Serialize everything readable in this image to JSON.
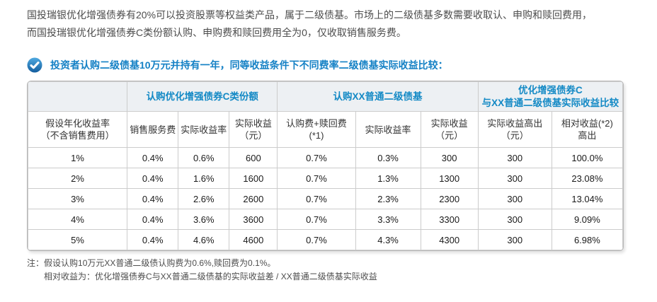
{
  "colors": {
    "accent_blue": "#1581c5",
    "table_header_text": "#1389c5",
    "table_header_bg": "#edf0f3",
    "table_border": "#cccccc",
    "body_text": "#4c4c4c"
  },
  "intro": {
    "line1": "国投瑞银优化增强债券有20%可以投资股票等权益类产品，属于二级债基。市场上的二级债基多数需要收取认、申购和赎回费用，",
    "line2": "而国投瑞银优化增强债券C类份额认购、申购费和赎回费用全为0，仅收取销售服务费。"
  },
  "heading": {
    "icon": "check-circle-icon",
    "text": "投资者认购二级债基10万元并持有一年，同等收益条件下不同费率二级债基实际收益比较："
  },
  "comparison_table": {
    "group_headers": [
      {
        "lines": [
          ""
        ],
        "colspan": 1
      },
      {
        "lines": [
          "认购优化增强债券C类份额"
        ],
        "colspan": 3
      },
      {
        "lines": [
          "认购XX普通二级债基"
        ],
        "colspan": 3
      },
      {
        "lines": [
          "优化增强债券C",
          "与XX普通二级债基实际收益比较"
        ],
        "colspan": 2
      }
    ],
    "column_headers": [
      {
        "lines": [
          "假设年化收益率",
          "（不含销售费用）"
        ]
      },
      {
        "lines": [
          "销售服务费"
        ]
      },
      {
        "lines": [
          "实际收益率"
        ]
      },
      {
        "lines": [
          "实际收益",
          "（元）"
        ]
      },
      {
        "lines": [
          "认购费+赎回费",
          "(*1)"
        ]
      },
      {
        "lines": [
          "实际收益率"
        ]
      },
      {
        "lines": [
          "实际收益",
          "（元）"
        ]
      },
      {
        "lines": [
          "实际收益高出",
          "（元）"
        ]
      },
      {
        "lines": [
          "相对收益(*2)",
          "高出"
        ]
      }
    ],
    "rows": [
      [
        "1%",
        "0.4%",
        "0.6%",
        "600",
        "0.7%",
        "0.3%",
        "300",
        "300",
        "100.0%"
      ],
      [
        "2%",
        "0.4%",
        "1.6%",
        "1600",
        "0.7%",
        "1.3%",
        "1300",
        "300",
        "23.08%"
      ],
      [
        "3%",
        "0.4%",
        "2.6%",
        "2600",
        "0.7%",
        "2.3%",
        "2300",
        "300",
        "13.04%"
      ],
      [
        "4%",
        "0.4%",
        "3.6%",
        "3600",
        "0.7%",
        "3.3%",
        "3300",
        "300",
        "9.09%"
      ],
      [
        "5%",
        "0.4%",
        "4.6%",
        "4600",
        "0.7%",
        "4.3%",
        "4300",
        "300",
        "6.98%"
      ]
    ]
  },
  "notes": {
    "label": "注：",
    "items": [
      "假设认购10万元XX普通二级债认购费为0.6%,赎回费为0.1%。",
      "相对收益为：优化增强债券C与XX普通二级债基的实际收益差 / XX普通二级债基实际收益"
    ]
  }
}
